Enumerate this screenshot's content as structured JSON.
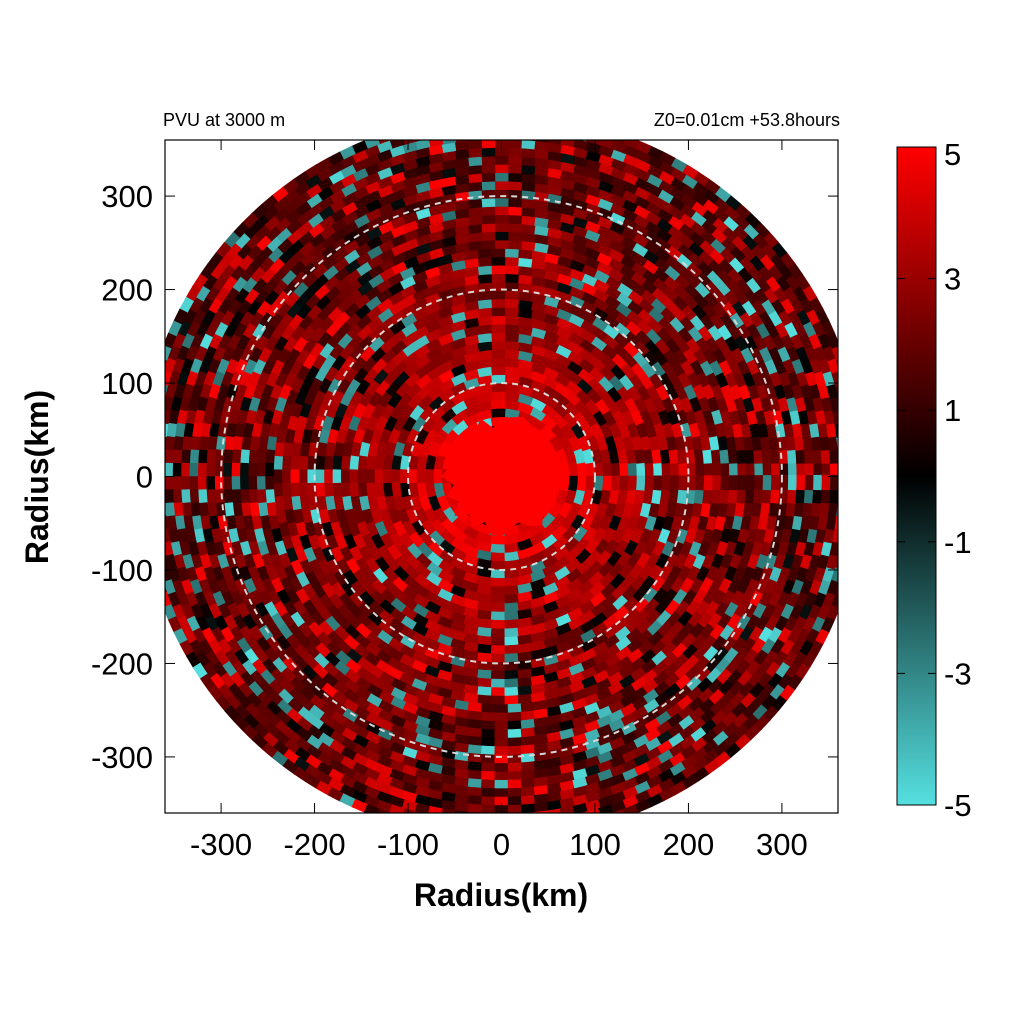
{
  "chart_data": {
    "type": "heatmap",
    "title_left": "PVU at  3000 m",
    "title_right": "Z0=0.01cm  +53.8hours",
    "xlabel": "Radius(km)",
    "ylabel": "Radius(km)",
    "xlim": [
      -360,
      360
    ],
    "ylim": [
      -360,
      360
    ],
    "x_ticks": [
      -300,
      -200,
      -100,
      0,
      100,
      200,
      300
    ],
    "y_ticks": [
      300,
      200,
      100,
      0,
      -100,
      -200,
      -300
    ],
    "x_tick_labels": [
      "-300",
      "-200",
      "-100",
      "0",
      "100",
      "200",
      "300"
    ],
    "y_tick_labels": [
      "300",
      "200",
      "100",
      "0",
      "-100",
      "-200",
      "-300"
    ],
    "domain_radius_km": 380,
    "reference_circles_km": [
      100,
      200,
      300
    ],
    "colorbar": {
      "min": -5,
      "max": 5,
      "ticks": [
        5,
        3,
        1,
        -1,
        -3,
        -5
      ],
      "tick_labels": [
        "5",
        "3",
        "1",
        "-1",
        "-3",
        "-5"
      ],
      "colors": {
        "-5": "#55e0e0",
        "0": "#000000",
        "5": "#ff0000"
      }
    },
    "core": {
      "center_km": [
        0,
        0
      ],
      "radius_km": 60,
      "value": 5
    },
    "ring_mean_values": [
      {
        "r_km": 60,
        "value": 5.0
      },
      {
        "r_km": 100,
        "value": 3.5
      },
      {
        "r_km": 150,
        "value": 2.8
      },
      {
        "r_km": 200,
        "value": 2.4
      },
      {
        "r_km": 250,
        "value": 2.0
      },
      {
        "r_km": 300,
        "value": 1.8
      },
      {
        "r_km": 380,
        "value": 1.6
      }
    ],
    "grid": false
  }
}
